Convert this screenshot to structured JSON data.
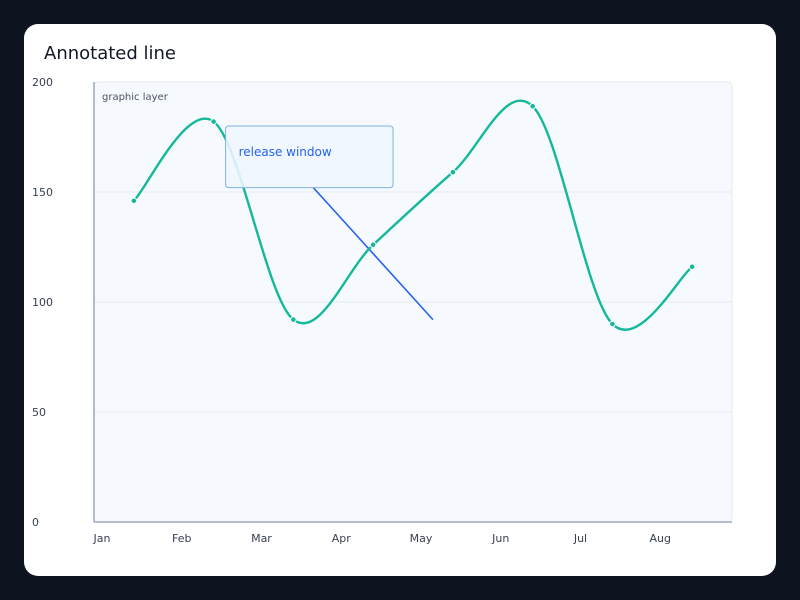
{
  "chart_data": {
    "type": "line",
    "title": "Annotated line",
    "layer_label": "graphic layer",
    "categories": [
      "Jan",
      "Feb",
      "Mar",
      "Apr",
      "May",
      "Jun",
      "Jul",
      "Aug"
    ],
    "x": [
      0.4,
      1.4,
      2.4,
      3.4,
      4.4,
      5.4,
      6.4,
      7.4
    ],
    "values": [
      146,
      182,
      92,
      126,
      159,
      189,
      90,
      116
    ],
    "ylim": [
      0,
      200
    ],
    "yticks": [
      0,
      50,
      100,
      150,
      200
    ],
    "xlim": [
      -0.1,
      7.9
    ],
    "grid": true,
    "annotation": {
      "label": "release window",
      "box_x": [
        1.55,
        3.65
      ],
      "box_y": [
        152,
        180
      ],
      "line_from": [
        2.65,
        152
      ],
      "line_to": [
        4.15,
        92
      ]
    },
    "colors": {
      "line": "#14b89a",
      "annotation": "#2563eb",
      "annotation_fill": "#eff6ff",
      "annotation_border": "#7fb3e6",
      "plot_bg": "#f6f9fd",
      "grid": "#e6ebf2",
      "axis": "#9aa8bf"
    }
  }
}
